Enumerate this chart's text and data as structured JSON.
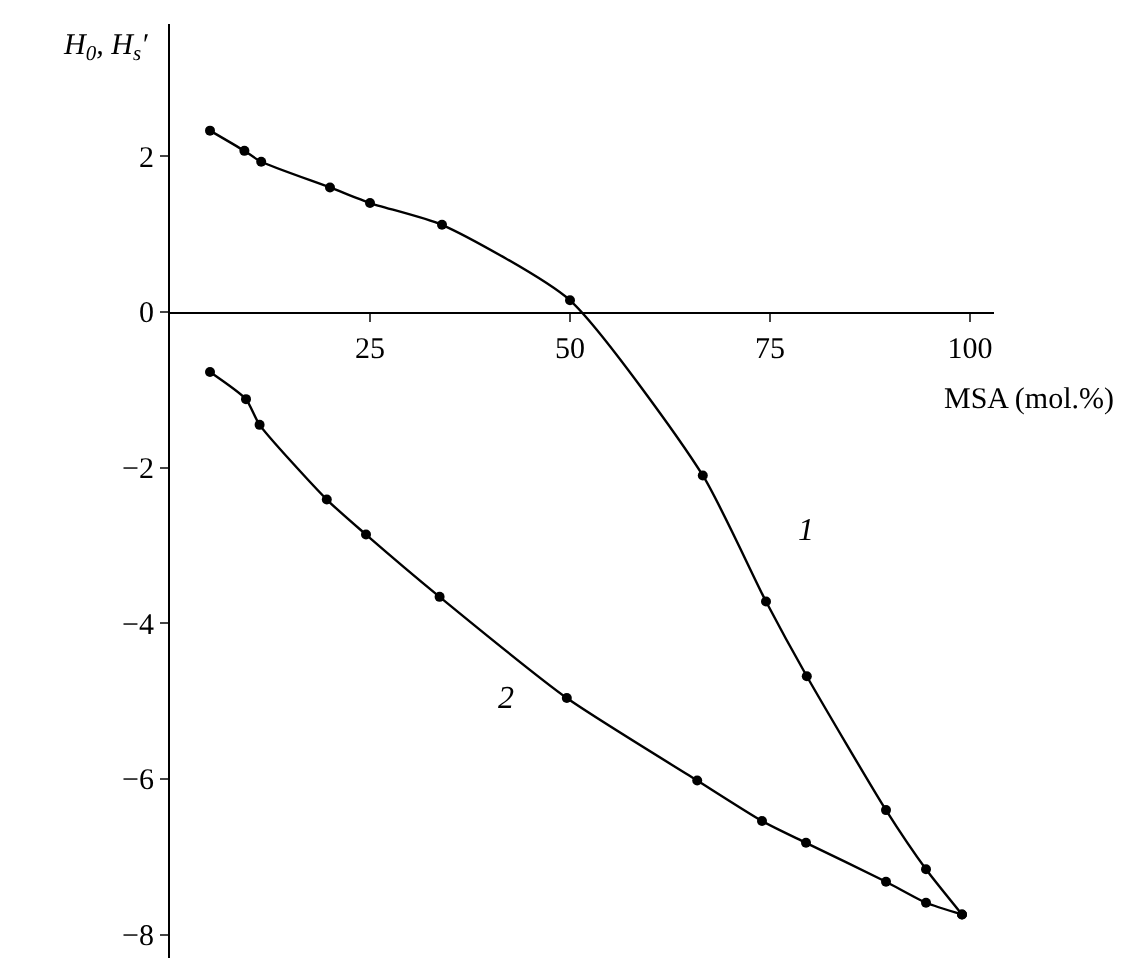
{
  "chart_data": {
    "type": "line",
    "ylabel": "H$_{0}$, H$_{s}$′",
    "xlabel": "MSA (mol.%)",
    "series": [
      {
        "name": "1",
        "color": "#000000",
        "x": [
          5,
          9.3,
          11.4,
          20,
          25,
          34,
          50,
          66.6,
          74.5,
          79.6,
          89.5,
          94.5,
          99
        ],
        "values": [
          2.33,
          2.07,
          1.93,
          1.6,
          1.4,
          1.12,
          0.15,
          -2.1,
          -3.72,
          -4.68,
          -6.4,
          -7.16,
          -7.74
        ]
      },
      {
        "name": "2",
        "color": "#000000",
        "x": [
          5,
          9.5,
          11.2,
          19.6,
          24.5,
          33.7,
          49.6,
          65.9,
          74,
          79.5,
          89.5,
          94.5,
          99
        ],
        "values": [
          -0.77,
          -1.12,
          -1.45,
          -2.41,
          -2.86,
          -3.66,
          -4.96,
          -6.02,
          -6.54,
          -6.82,
          -7.32,
          -7.59,
          -7.74
        ]
      }
    ],
    "xlim": [
      0,
      103
    ],
    "ylim": [
      -8.3,
      3.7
    ],
    "xticks": [
      25,
      50,
      75,
      100
    ],
    "yticks": [
      2,
      0,
      -2,
      -4,
      -6,
      -8
    ],
    "marker": "circle",
    "line_style": "solid",
    "legend": false
  }
}
